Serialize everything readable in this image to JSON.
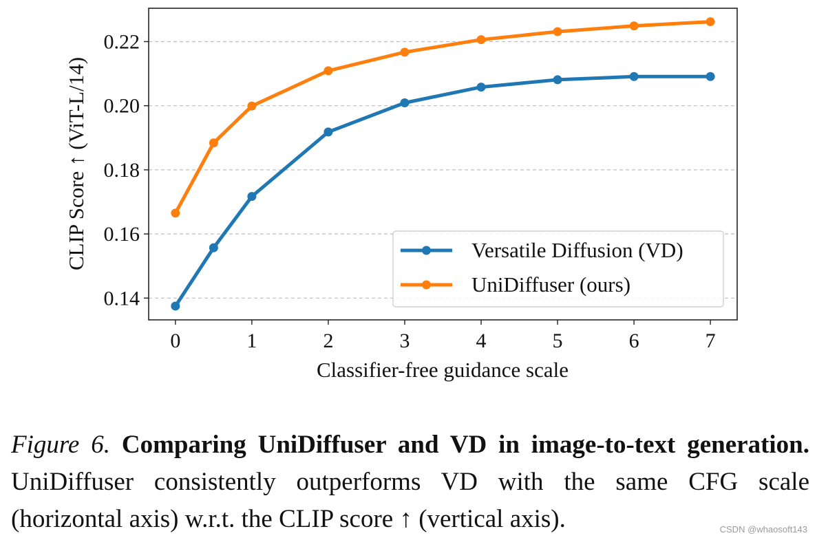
{
  "chart_data": {
    "type": "line",
    "xlabel": "Classifier-free guidance scale",
    "ylabel": "CLIP Score ↑ (ViT-L/14)",
    "xlim": [
      -0.35,
      7.35
    ],
    "ylim": [
      0.1332,
      0.2304
    ],
    "x_ticks": [
      0,
      1,
      2,
      3,
      4,
      5,
      6,
      7
    ],
    "y_ticks": [
      0.14,
      0.16,
      0.18,
      0.2,
      0.22
    ],
    "y_tick_labels": [
      "0.14",
      "0.16",
      "0.18",
      "0.20",
      "0.22"
    ],
    "grid": "horizontal dashed",
    "legend_position": "lower-right",
    "x": [
      0,
      0.5,
      1,
      2,
      3,
      4,
      5,
      6,
      7
    ],
    "series": [
      {
        "name": "Versatile Diffusion (VD)",
        "color": "#1f77b4",
        "values": [
          0.1375,
          0.1557,
          0.1717,
          0.1918,
          0.2009,
          0.2058,
          0.2081,
          0.2091,
          0.2091
        ]
      },
      {
        "name": "UniDiffuser (ours)",
        "color": "#ff7f0e",
        "values": [
          0.1665,
          0.1884,
          0.1999,
          0.2109,
          0.2167,
          0.2206,
          0.2231,
          0.2249,
          0.2262
        ]
      }
    ]
  },
  "caption": {
    "fig_label": "Figure 6.",
    "bold": "Comparing UniDiffuser and VD in image-to-text generation.",
    "body": "UniDiffuser consistently outperforms VD with the same CFG scale (horizontal axis) w.r.t. the CLIP score ↑ (vertical axis)."
  },
  "watermark": "CSDN @whaosoft143"
}
